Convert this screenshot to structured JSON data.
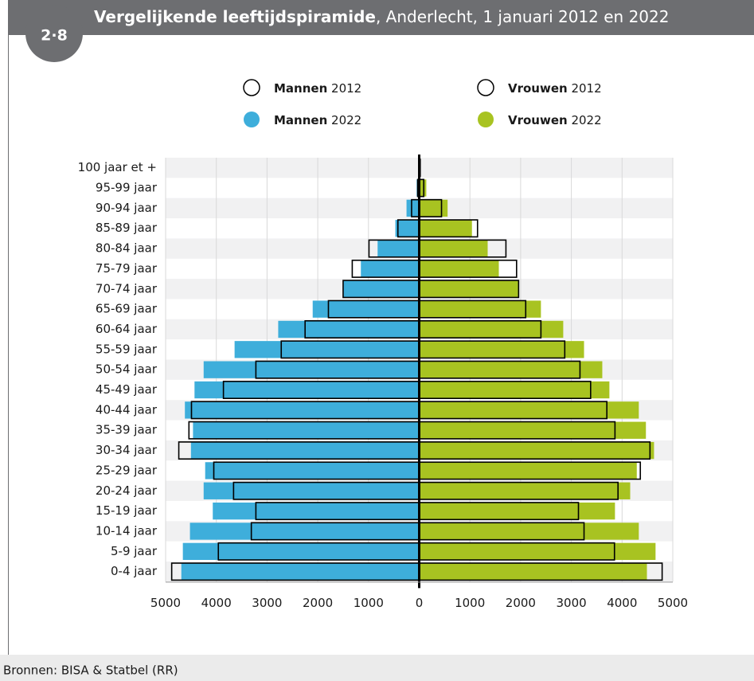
{
  "chart_data": {
    "type": "pyramid",
    "figure_number": "2·8",
    "title": "Vergelijkende leeftijdspiramide",
    "subtitle": ", Anderlecht, 1 januari 2012 en 2022",
    "source": "Bronnen: BISA & Statbel (RR)",
    "categories": [
      "100 jaar et +",
      "95-99 jaar",
      "90-94 jaar",
      "85-89 jaar",
      "80-84 jaar",
      "75-79 jaar",
      "70-74 jaar",
      "65-69 jaar",
      "60-64 jaar",
      "55-59 jaar",
      "50-54 jaar",
      "45-49 jaar",
      "40-44 jaar",
      "35-39 jaar",
      "30-34 jaar",
      "25-29 jaar",
      "20-24 jaar",
      "15-19 jaar",
      "10-14 jaar",
      "5-9 jaar",
      "0-4 jaar"
    ],
    "series": [
      {
        "name": "Mannen 2022",
        "color": "#3eaedb",
        "style": "filled",
        "values": [
          -10,
          -50,
          -250,
          -470,
          -820,
          -1150,
          -1490,
          -2100,
          -2780,
          -3640,
          -4250,
          -4430,
          -4620,
          -4460,
          -4500,
          -4220,
          -4250,
          -4070,
          -4520,
          -4660,
          -4690
        ]
      },
      {
        "name": "Vrouwen 2022",
        "color": "#a8c321",
        "style": "filled",
        "values": [
          30,
          140,
          560,
          1040,
          1350,
          1570,
          1950,
          2400,
          2840,
          3250,
          3610,
          3750,
          4330,
          4470,
          4630,
          4290,
          4160,
          3860,
          4330,
          4660,
          4490
        ]
      },
      {
        "name": "Mannen 2012",
        "color": "#000000",
        "style": "outline",
        "values": [
          0,
          -30,
          -150,
          -420,
          -990,
          -1320,
          -1500,
          -1790,
          -2250,
          -2720,
          -3220,
          -3860,
          -4490,
          -4540,
          -4740,
          -4050,
          -3660,
          -3220,
          -3310,
          -3960,
          -4880
        ]
      },
      {
        "name": "Vrouwen 2012",
        "color": "#000000",
        "style": "outline",
        "values": [
          20,
          90,
          440,
          1150,
          1710,
          1920,
          1960,
          2100,
          2400,
          2870,
          3170,
          3380,
          3700,
          3860,
          4550,
          4360,
          3920,
          3140,
          3250,
          3850,
          4790
        ]
      }
    ],
    "xlim": [
      -5000,
      5000
    ],
    "xticks": [
      {
        "value": -5000,
        "label": "5000"
      },
      {
        "value": -4000,
        "label": "4000"
      },
      {
        "value": -3000,
        "label": "3000"
      },
      {
        "value": -2000,
        "label": "2000"
      },
      {
        "value": -1000,
        "label": "1000"
      },
      0,
      1000,
      2000,
      3000,
      4000,
      5000
    ],
    "grid": true
  }
}
